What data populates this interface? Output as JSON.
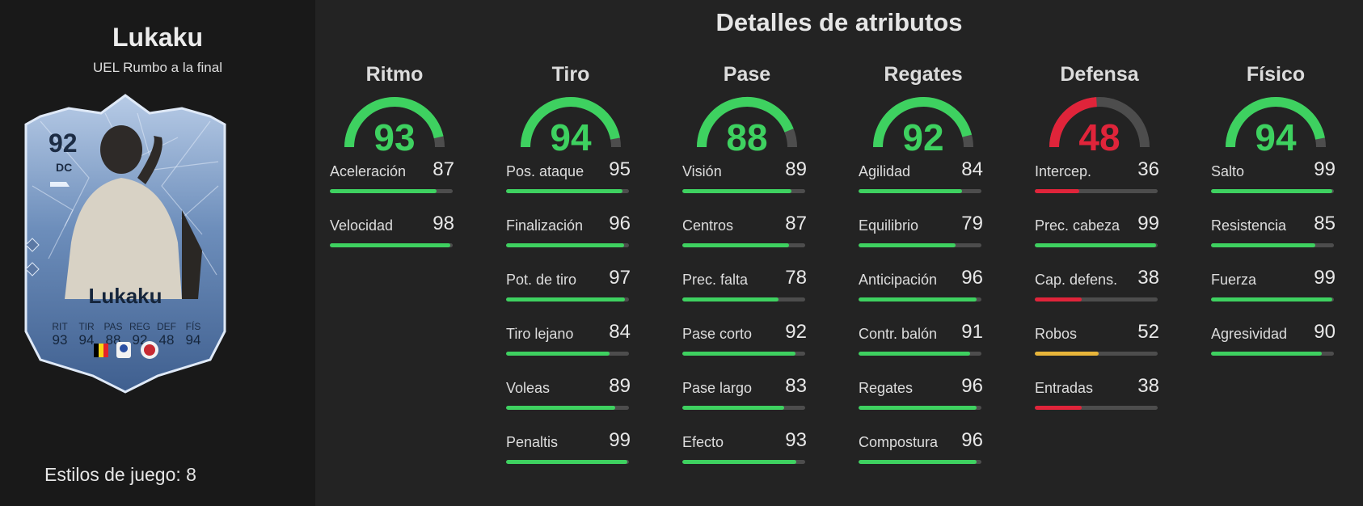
{
  "player": {
    "name": "Lukaku",
    "card_title": "UEL Rumbo a la final",
    "overall": "92",
    "position": "DC",
    "card_name": "Lukaku",
    "card_stats": [
      {
        "label": "RIT",
        "value": "93"
      },
      {
        "label": "TIR",
        "value": "94"
      },
      {
        "label": "PAS",
        "value": "88"
      },
      {
        "label": "REG",
        "value": "92"
      },
      {
        "label": "DEF",
        "value": "48"
      },
      {
        "label": "FÍS",
        "value": "94"
      }
    ],
    "playstyles": "Estilos de juego: 8"
  },
  "section_title": "Detalles de atributos",
  "colors": {
    "green": "#3ed160",
    "red": "#e0243a",
    "yellow": "#e8b53a",
    "track": "#4d4d4d"
  },
  "categories": [
    {
      "name": "Ritmo",
      "value": 93,
      "stats": [
        {
          "label": "Aceleración",
          "value": 87
        },
        {
          "label": "Velocidad",
          "value": 98
        }
      ]
    },
    {
      "name": "Tiro",
      "value": 94,
      "stats": [
        {
          "label": "Pos. ataque",
          "value": 95
        },
        {
          "label": "Finalización",
          "value": 96
        },
        {
          "label": "Pot. de tiro",
          "value": 97
        },
        {
          "label": "Tiro lejano",
          "value": 84
        },
        {
          "label": "Voleas",
          "value": 89
        },
        {
          "label": "Penaltis",
          "value": 99
        }
      ]
    },
    {
      "name": "Pase",
      "value": 88,
      "stats": [
        {
          "label": "Visión",
          "value": 89
        },
        {
          "label": "Centros",
          "value": 87
        },
        {
          "label": "Prec. falta",
          "value": 78
        },
        {
          "label": "Pase corto",
          "value": 92
        },
        {
          "label": "Pase largo",
          "value": 83
        },
        {
          "label": "Efecto",
          "value": 93
        }
      ]
    },
    {
      "name": "Regates",
      "value": 92,
      "stats": [
        {
          "label": "Agilidad",
          "value": 84
        },
        {
          "label": "Equilibrio",
          "value": 79
        },
        {
          "label": "Anticipación",
          "value": 96
        },
        {
          "label": "Contr. balón",
          "value": 91
        },
        {
          "label": "Regates",
          "value": 96
        },
        {
          "label": "Compostura",
          "value": 96
        }
      ]
    },
    {
      "name": "Defensa",
      "value": 48,
      "stats": [
        {
          "label": "Intercep.",
          "value": 36
        },
        {
          "label": "Prec. cabeza",
          "value": 99
        },
        {
          "label": "Cap. defens.",
          "value": 38
        },
        {
          "label": "Robos",
          "value": 52
        },
        {
          "label": "Entradas",
          "value": 38
        }
      ]
    },
    {
      "name": "Físico",
      "value": 94,
      "stats": [
        {
          "label": "Salto",
          "value": 99
        },
        {
          "label": "Resistencia",
          "value": 85
        },
        {
          "label": "Fuerza",
          "value": 99
        },
        {
          "label": "Agresividad",
          "value": 90
        }
      ]
    }
  ]
}
